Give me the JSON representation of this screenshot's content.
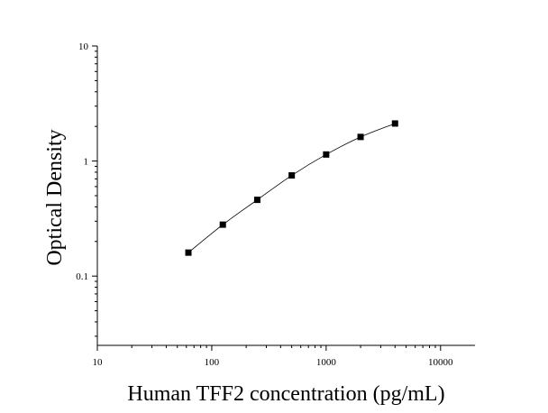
{
  "chart_data": {
    "type": "scatter",
    "title": "",
    "xlabel": "Human TFF2 concentration (pg/mL)",
    "ylabel": "Optical Density",
    "x_scale": "log",
    "y_scale": "log",
    "xlim": [
      10,
      20000
    ],
    "ylim": [
      0.025,
      10
    ],
    "x_ticks": [
      {
        "value": 10,
        "label": "10"
      },
      {
        "value": 100,
        "label": "100"
      },
      {
        "value": 1000,
        "label": "1000"
      },
      {
        "value": 10000,
        "label": "10000"
      }
    ],
    "y_ticks": [
      {
        "value": 0.1,
        "label": "0.1"
      },
      {
        "value": 1,
        "label": "1"
      },
      {
        "value": 10,
        "label": "10"
      }
    ],
    "grid": false,
    "legend": "none",
    "fit_line": true,
    "series": [
      {
        "x": [
          62.5,
          125,
          250,
          500,
          1000,
          2000,
          4000
        ],
        "y": [
          0.16,
          0.28,
          0.46,
          0.75,
          1.14,
          1.62,
          2.12
        ]
      }
    ],
    "colors": {
      "axis": "#000000",
      "marker": "#000000",
      "line": "#000000"
    }
  }
}
